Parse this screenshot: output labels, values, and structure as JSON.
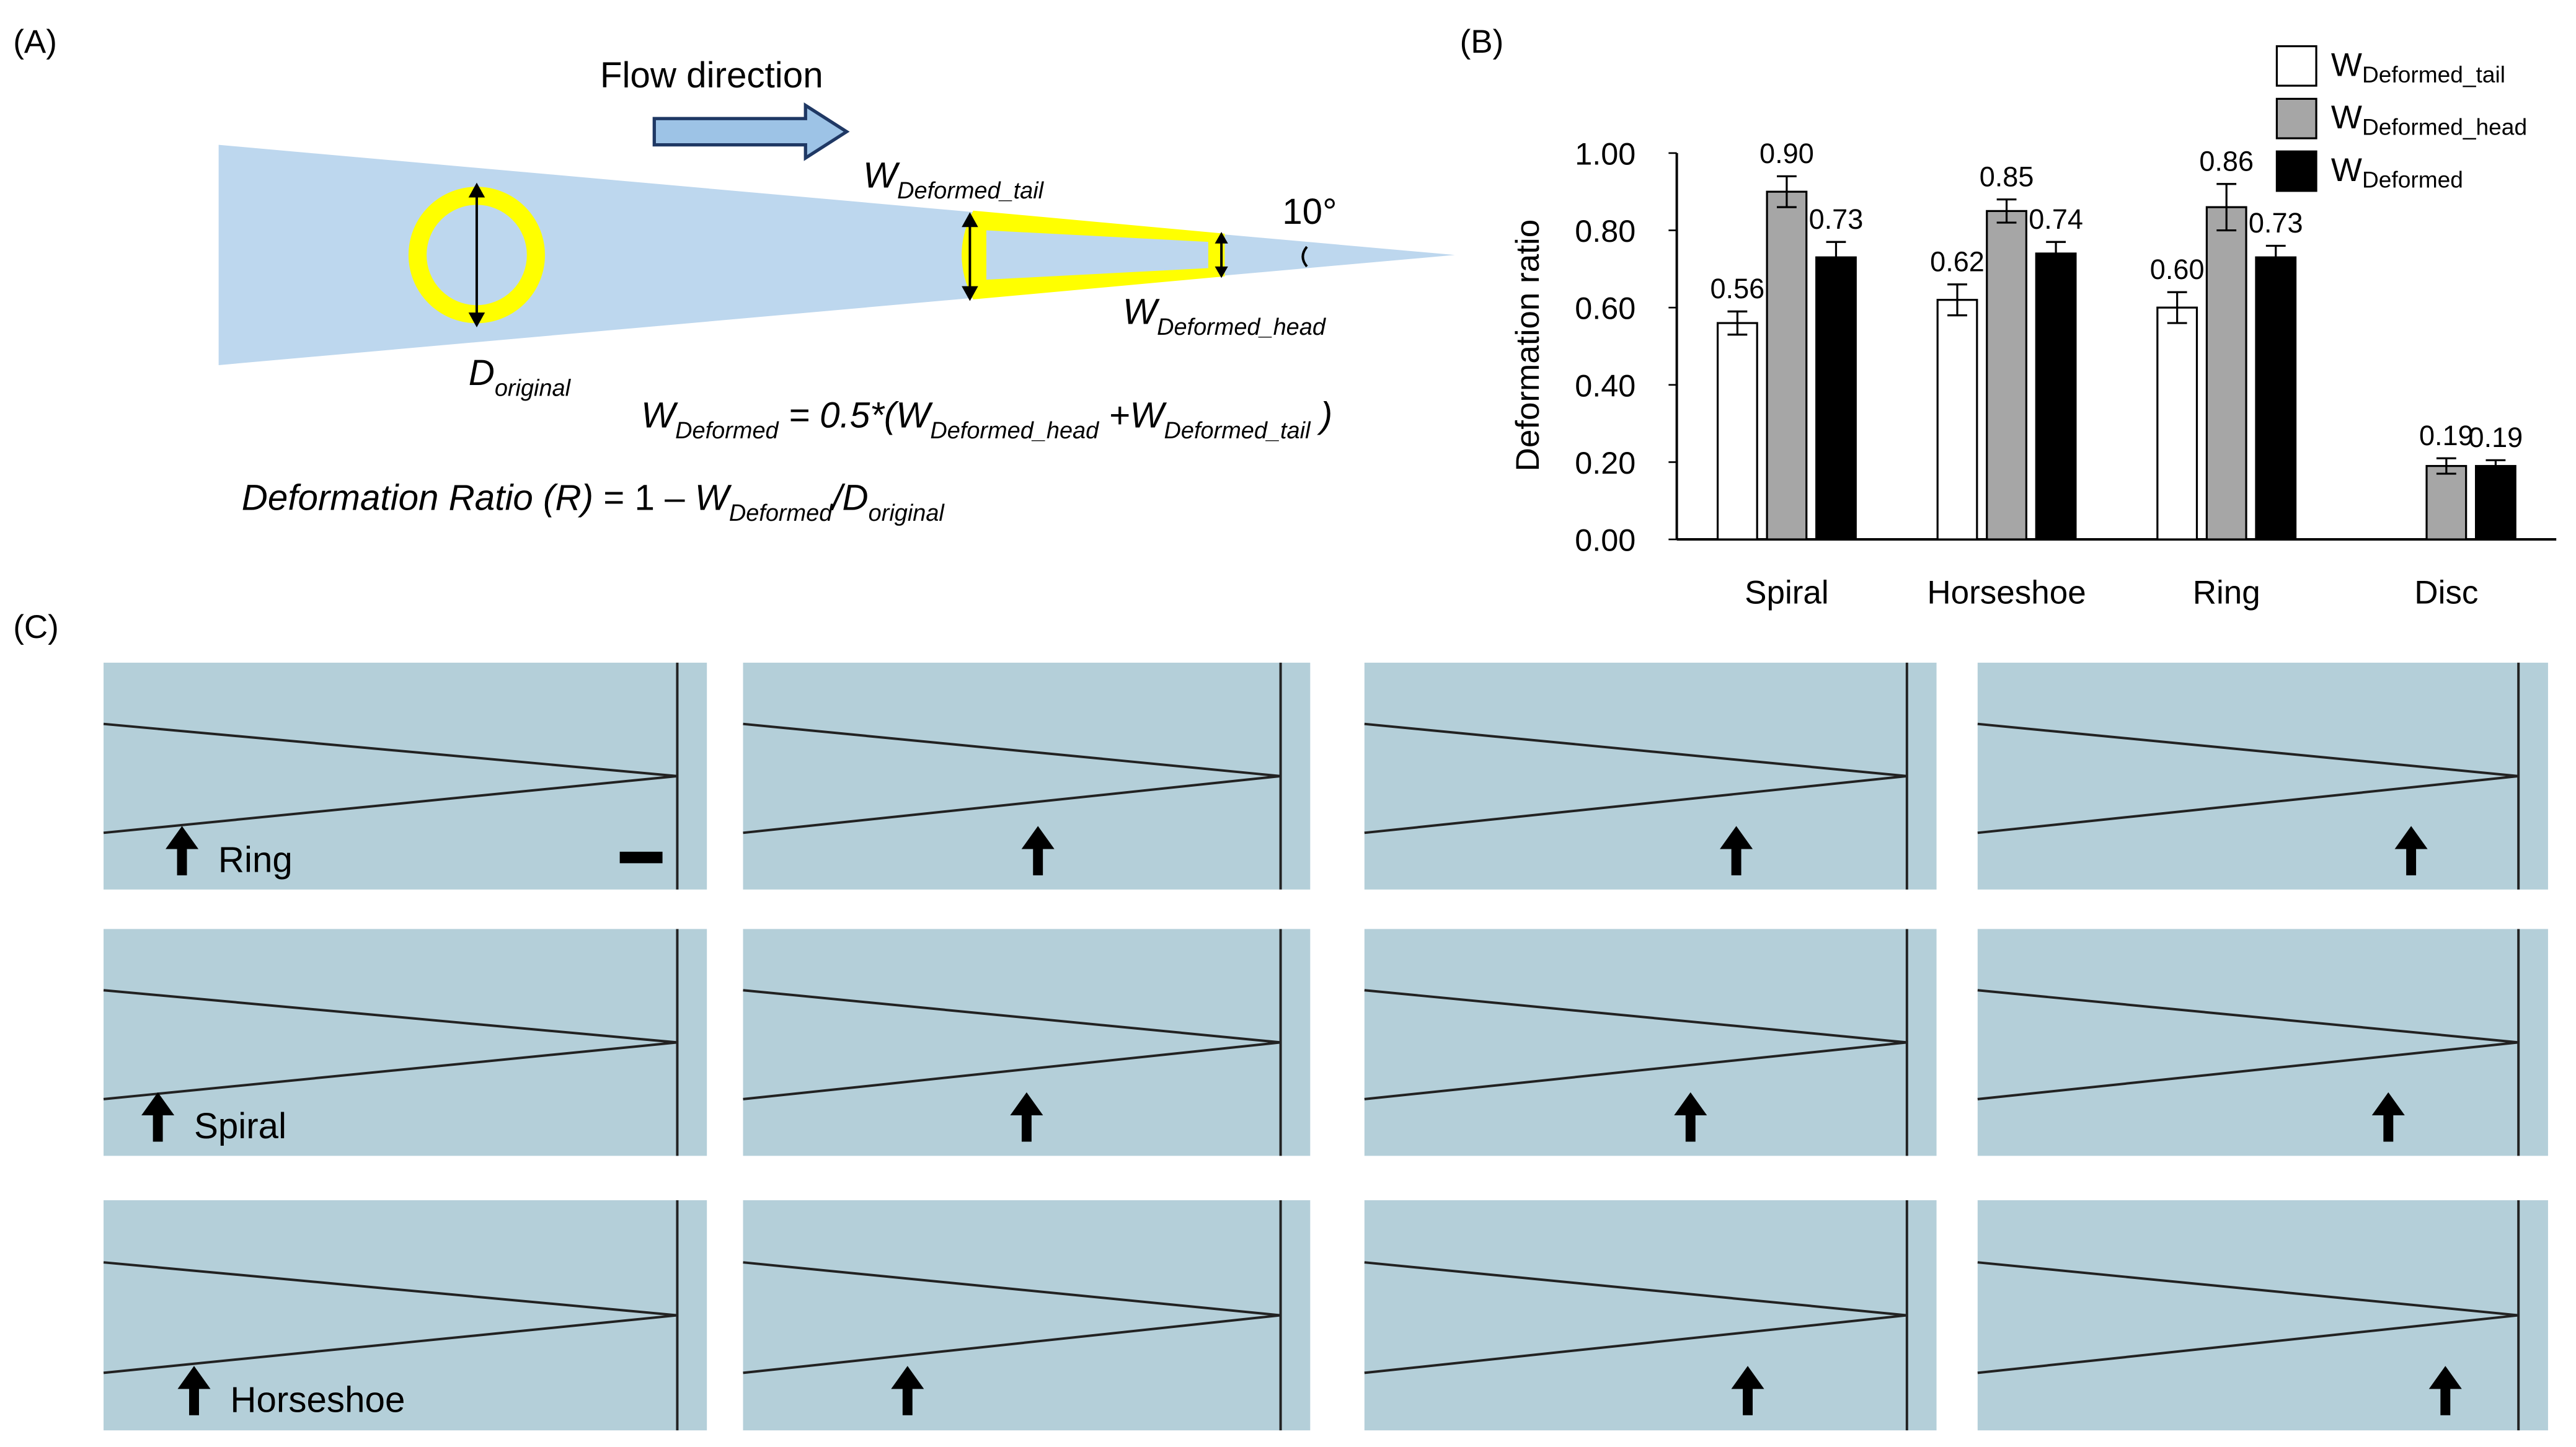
{
  "panel_a": {
    "label": "(A)",
    "flow": "Flow direction",
    "angle": "10°",
    "w_tail": [
      {
        "text": "W"
      },
      {
        "text": "Deformed_tail",
        "sub": true
      }
    ],
    "w_head": [
      {
        "text": "W"
      },
      {
        "text": "Deformed_head",
        "sub": true
      }
    ],
    "d_original": [
      {
        "text": "D"
      },
      {
        "text": "original",
        "sub": true
      }
    ],
    "formula": [
      {
        "text": "W"
      },
      {
        "text": "Deformed",
        "sub": true
      },
      {
        "text": " = 0.5*(W"
      },
      {
        "text": "Deformed_head",
        "sub": true
      },
      {
        "text": " +W"
      },
      {
        "text": "Deformed_tail",
        "sub": true
      },
      {
        "text": " )"
      }
    ],
    "ratio": [
      {
        "text": "Deformation Ratio (R)"
      },
      {
        "text": " = 1 – ",
        "upright": true
      },
      {
        "text": "W"
      },
      {
        "text": "Deformed",
        "sub": true
      },
      {
        "text": "/D"
      },
      {
        "text": "original",
        "sub": true
      }
    ]
  },
  "panel_b_label": "(B)",
  "chart_data": {
    "type": "bar",
    "y_label": "Deformation ratio",
    "categories": [
      "Spiral",
      "Horseshoe",
      "Ring",
      "Disc"
    ],
    "series": [
      {
        "name": "WDeformed_tail",
        "color": "#ffffff",
        "values": [
          0.56,
          0.62,
          0.6,
          null
        ],
        "value_labels": [
          "0.56",
          "0.62",
          "0.60",
          null
        ],
        "errors": [
          0.03,
          0.04,
          0.04,
          null
        ]
      },
      {
        "name": "WDeformed_head",
        "color": "#a6a6a6",
        "values": [
          0.9,
          0.85,
          0.86,
          0.19
        ],
        "value_labels": [
          "0.90",
          "0.85",
          "0.86",
          "0.19"
        ],
        "errors": [
          0.04,
          0.03,
          0.06,
          0.02
        ]
      },
      {
        "name": "WDeformed",
        "color": "#000000",
        "values": [
          0.73,
          0.74,
          0.73,
          0.19
        ],
        "value_labels": [
          "0.73",
          "0.74",
          "0.73",
          "0.19"
        ],
        "errors": [
          0.04,
          0.03,
          0.03,
          0.015
        ]
      }
    ],
    "ylim": [
      0,
      1.0
    ],
    "yticks": [
      {
        "value": 0,
        "label": "0.00"
      },
      {
        "value": 0.2,
        "label": "0.20"
      },
      {
        "value": 0.4,
        "label": "0.40"
      },
      {
        "value": 0.6,
        "label": "0.60"
      },
      {
        "value": 0.8,
        "label": "0.80"
      },
      {
        "value": 1.0,
        "label": "1.00"
      }
    ],
    "grid": false
  },
  "panel_c": {
    "label": "(C)",
    "rows": [
      "Ring",
      "Spiral",
      "Horseshoe"
    ]
  }
}
